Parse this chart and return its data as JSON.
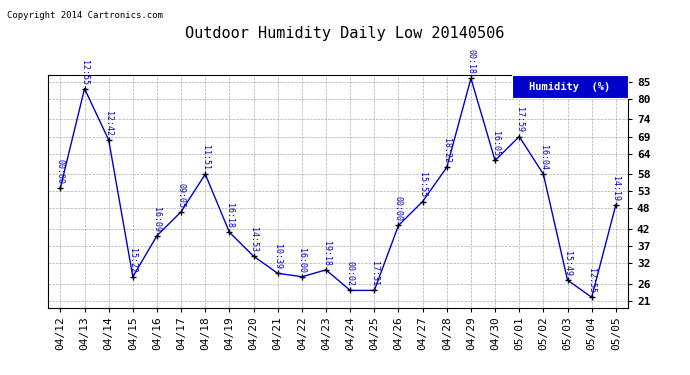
{
  "title": "Outdoor Humidity Daily Low 20140506",
  "copyright": "Copyright 2014 Cartronics.com",
  "legend_label": "Humidity  (%)",
  "x_labels": [
    "04/12",
    "04/13",
    "04/14",
    "04/15",
    "04/16",
    "04/17",
    "04/18",
    "04/19",
    "04/20",
    "04/21",
    "04/22",
    "04/23",
    "04/24",
    "04/25",
    "04/26",
    "04/27",
    "04/28",
    "04/29",
    "04/30",
    "05/01",
    "05/02",
    "05/03",
    "05/04",
    "05/05"
  ],
  "y_values": [
    54,
    83,
    68,
    28,
    40,
    47,
    58,
    41,
    34,
    29,
    28,
    30,
    24,
    24,
    43,
    50,
    60,
    86,
    62,
    69,
    58,
    27,
    22,
    49
  ],
  "time_labels": [
    "00:00",
    "12:55",
    "12:42",
    "15:22",
    "16:09",
    "09:05",
    "11:51",
    "16:18",
    "14:53",
    "10:39",
    "16:00",
    "19:18",
    "00:02",
    "17:31",
    "00:00",
    "15:55",
    "18:22",
    "00:18",
    "16:05",
    "17:59",
    "16:04",
    "15:49",
    "12:55",
    "14:19"
  ],
  "y_ticks": [
    21,
    26,
    32,
    37,
    42,
    48,
    53,
    58,
    64,
    69,
    74,
    80,
    85
  ],
  "ylim": [
    19,
    87
  ],
  "line_color": "#0000cc",
  "bg_color": "#ffffff",
  "grid_color": "#aaaaaa",
  "title_fontsize": 11,
  "tick_fontsize": 8,
  "annot_fontsize": 6,
  "legend_bg": "#0000cc",
  "legend_text_color": "#ffffff"
}
